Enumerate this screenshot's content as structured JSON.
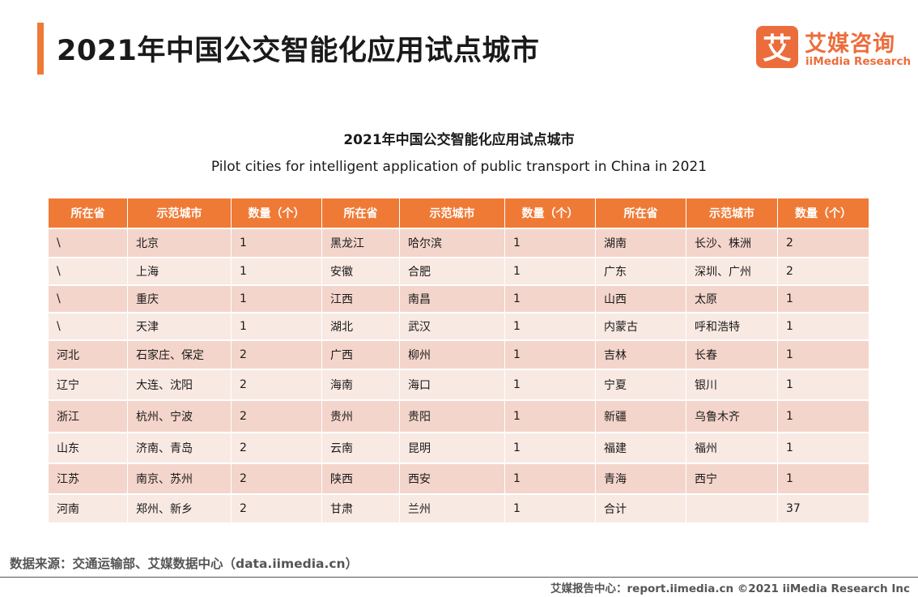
{
  "page": {
    "title": "2021年中国公交智能化应用试点城市"
  },
  "logo": {
    "mark_char": "艾",
    "name_cn": "艾媒咨询",
    "name_en": "iiMedia Research",
    "brand_color": "#ec6d3c"
  },
  "chart": {
    "title": "2021年中国公交智能化应用试点城市",
    "subtitle": "Pilot cities for intelligent application of public transport in China in 2021"
  },
  "table": {
    "headers": [
      "所在省",
      "示范城市",
      "数量（个）",
      "所在省",
      "示范城市",
      "数量（个）",
      "所在省",
      "示范城市",
      "数量（个）"
    ],
    "rows": [
      [
        "\\",
        "北京",
        "1",
        "黑龙江",
        "哈尔滨",
        "1",
        "湖南",
        "长沙、株洲",
        "2"
      ],
      [
        "\\",
        "上海",
        "1",
        "安徽",
        "合肥",
        "1",
        "广东",
        "深圳、广州",
        "2"
      ],
      [
        "\\",
        "重庆",
        "1",
        "江西",
        "南昌",
        "1",
        "山西",
        "太原",
        "1"
      ],
      [
        "\\",
        "天津",
        "1",
        "湖北",
        "武汉",
        "1",
        "内蒙古",
        "呼和浩特",
        "1"
      ],
      [
        "河北",
        "石家庄、保定",
        "2",
        "广西",
        "柳州",
        "1",
        "吉林",
        "长春",
        "1"
      ],
      [
        "辽宁",
        "大连、沈阳",
        "2",
        "海南",
        "海口",
        "1",
        "宁夏",
        "银川",
        "1"
      ],
      [
        "浙江",
        "杭州、宁波",
        "2",
        "贵州",
        "贵阳",
        "1",
        "新疆",
        "乌鲁木齐",
        "1"
      ],
      [
        "山东",
        "济南、青岛",
        "2",
        "云南",
        "昆明",
        "1",
        "福建",
        "福州",
        "1"
      ],
      [
        "江苏",
        "南京、苏州",
        "2",
        "陕西",
        "西安",
        "1",
        "青海",
        "西宁",
        "1"
      ],
      [
        "河南",
        "郑州、新乡",
        "2",
        "甘肃",
        "兰州",
        "1",
        "合计",
        "",
        "37"
      ]
    ],
    "header_color": "#ef7a36",
    "row_color_a": "#f4d5cb",
    "row_color_b": "#f9e9e3"
  },
  "source": "数据来源：交通运输部、艾媒数据中心（data.iimedia.cn）",
  "footer": "艾媒报告中心：report.iimedia.cn  ©2021  iiMedia Research  Inc"
}
